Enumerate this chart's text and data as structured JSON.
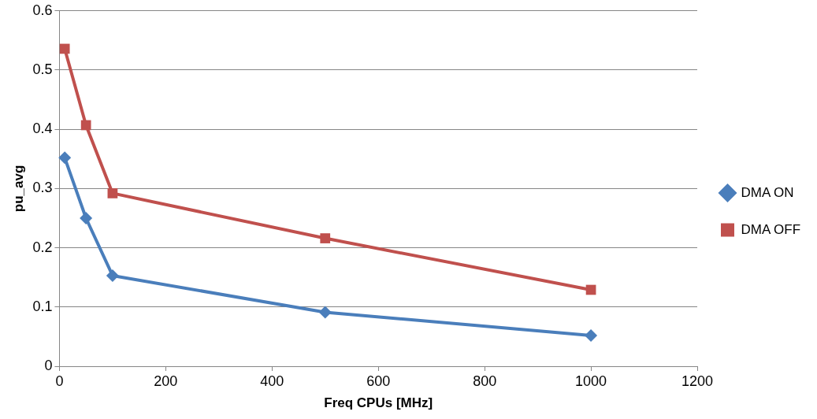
{
  "chart_data": {
    "type": "line",
    "xlabel": "Freq CPUs [MHz]",
    "ylabel": "pu_avg",
    "xlim": [
      0,
      1200
    ],
    "xticks": [
      0,
      200,
      400,
      600,
      800,
      1000,
      1200
    ],
    "ylim": [
      0,
      0.6
    ],
    "yticks": [
      0,
      0.1,
      0.2,
      0.3,
      0.4,
      0.5,
      0.6
    ],
    "grid": "y",
    "legend": "right",
    "line_style": "solid",
    "series": [
      {
        "name": "DMA ON",
        "color": "#4a7ebb",
        "marker": "diamond",
        "x": [
          10,
          50,
          100,
          500,
          1000
        ],
        "values": [
          0.352,
          0.25,
          0.153,
          0.091,
          0.052
        ]
      },
      {
        "name": "DMA OFF",
        "color": "#c0504d",
        "marker": "square",
        "x": [
          10,
          50,
          100,
          500,
          1000
        ],
        "values": [
          0.536,
          0.407,
          0.292,
          0.216,
          0.129
        ]
      }
    ]
  }
}
